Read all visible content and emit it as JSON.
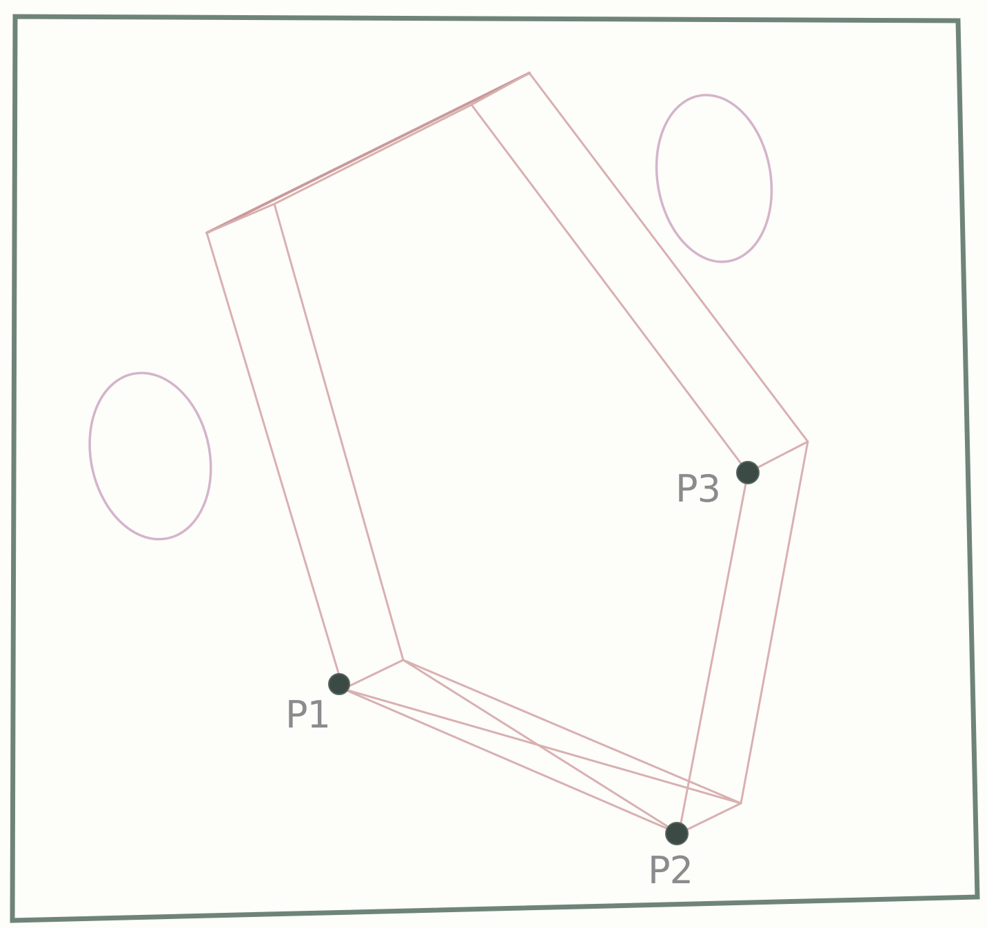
{
  "diagram": {
    "points": [
      {
        "id": "p1",
        "label": "P1"
      },
      {
        "id": "p2",
        "label": "P2"
      },
      {
        "id": "p3",
        "label": "P3"
      }
    ],
    "colors": {
      "frame": "#6f8478",
      "edges": "#d8b0b0",
      "ellipses": "#d4b4ca",
      "points": "#3b4a44",
      "labels": "#8c8a8d"
    }
  }
}
